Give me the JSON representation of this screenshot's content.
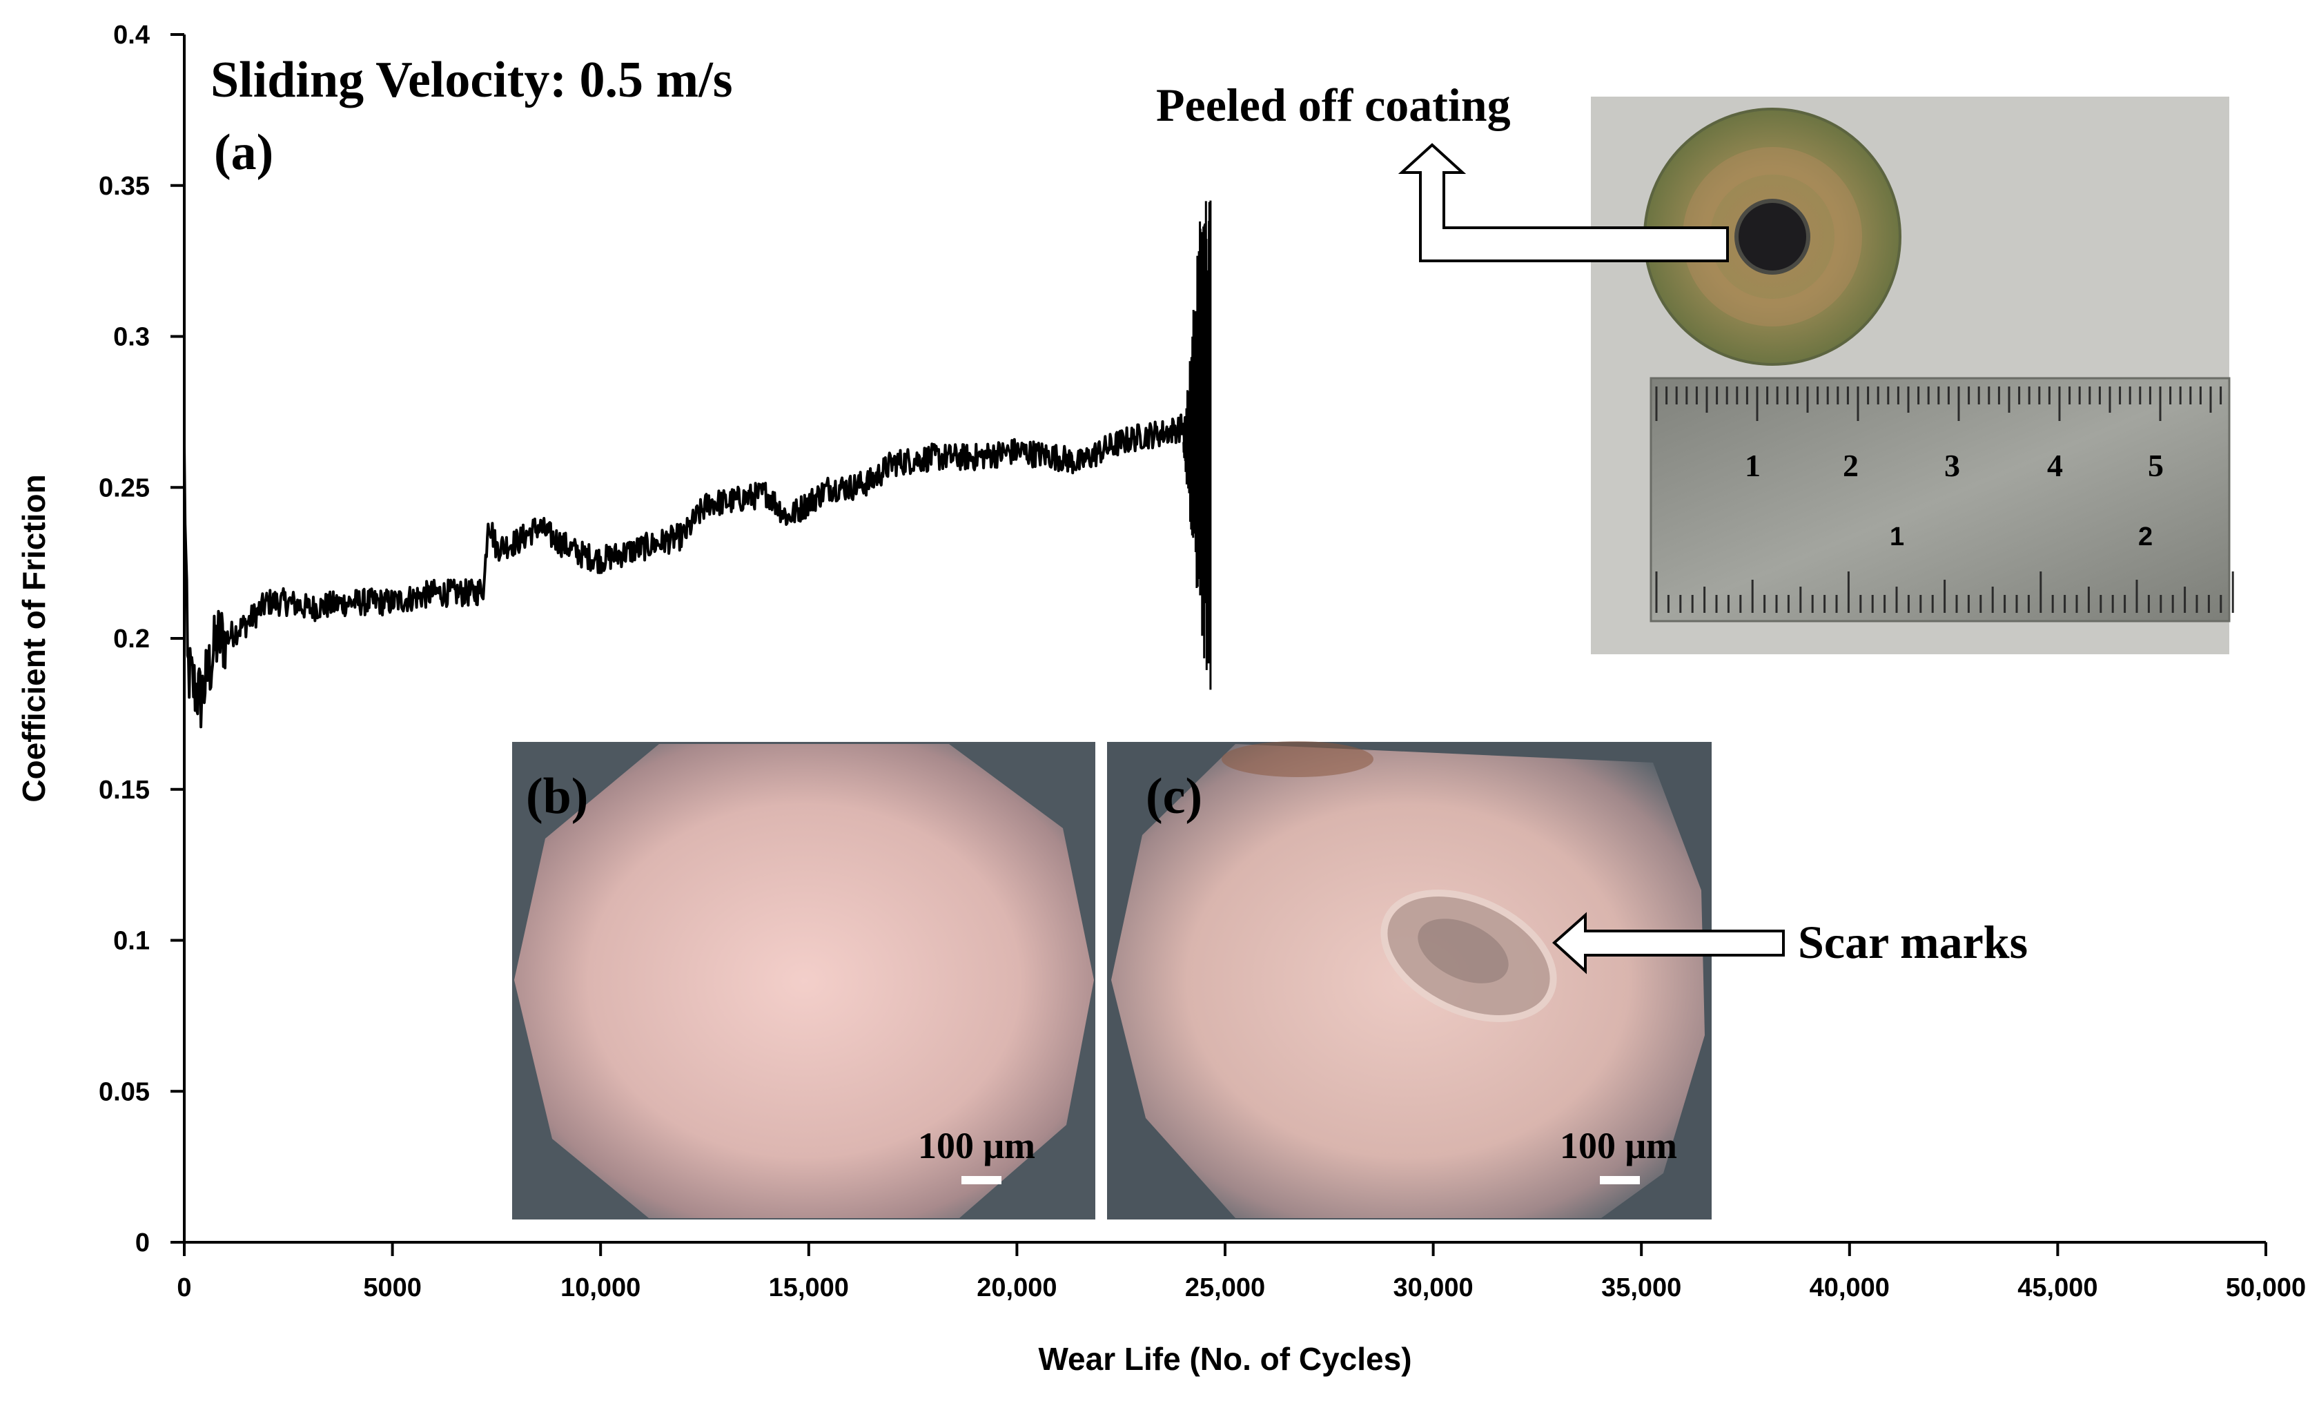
{
  "chart_data": {
    "type": "line",
    "title": "Sliding Velocity: 0.5 m/s",
    "panel_label": "(a)",
    "xlabel": "Wear Life (No. of Cycles)",
    "ylabel": "Coefficient of Friction",
    "xlim": [
      0,
      50000
    ],
    "ylim": [
      0,
      0.4
    ],
    "x_ticks": [
      {
        "value": 0,
        "label": "0"
      },
      {
        "value": 5000,
        "label": "5000"
      },
      {
        "value": 10000,
        "label": "10,000"
      },
      {
        "value": 15000,
        "label": "15,000"
      },
      {
        "value": 20000,
        "label": "20,000"
      },
      {
        "value": 25000,
        "label": "25,000"
      },
      {
        "value": 30000,
        "label": "30,000"
      },
      {
        "value": 35000,
        "label": "35,000"
      },
      {
        "value": 40000,
        "label": "40,000"
      },
      {
        "value": 45000,
        "label": "45,000"
      },
      {
        "value": 50000,
        "label": "50,000"
      }
    ],
    "y_ticks": [
      {
        "value": 0,
        "label": "0"
      },
      {
        "value": 0.05,
        "label": "0.05"
      },
      {
        "value": 0.1,
        "label": "0.1"
      },
      {
        "value": 0.15,
        "label": "0.15"
      },
      {
        "value": 0.2,
        "label": "0.2"
      },
      {
        "value": 0.25,
        "label": "0.25"
      },
      {
        "value": 0.3,
        "label": "0.3"
      },
      {
        "value": 0.35,
        "label": "0.35"
      },
      {
        "value": 0.4,
        "label": "0.4"
      }
    ],
    "series": [
      {
        "name": "COF",
        "color": "#000000",
        "x": [
          0,
          80,
          200,
          400,
          600,
          800,
          1000,
          1500,
          2000,
          2500,
          3000,
          4000,
          5000,
          6000,
          7000,
          7200,
          7300,
          7500,
          8000,
          8500,
          9000,
          9500,
          10000,
          10500,
          11000,
          11500,
          12000,
          12300,
          12600,
          13000,
          14000,
          14500,
          15000,
          15500,
          16000,
          16500,
          17000,
          18000,
          19000,
          20000,
          21000,
          21500,
          22000,
          22500,
          23000,
          23500,
          24000,
          24300,
          24600
        ],
        "y": [
          0.26,
          0.19,
          0.185,
          0.18,
          0.19,
          0.2,
          0.2,
          0.205,
          0.212,
          0.212,
          0.21,
          0.212,
          0.212,
          0.215,
          0.215,
          0.217,
          0.24,
          0.23,
          0.232,
          0.237,
          0.232,
          0.228,
          0.226,
          0.228,
          0.23,
          0.232,
          0.234,
          0.24,
          0.245,
          0.245,
          0.248,
          0.24,
          0.245,
          0.25,
          0.25,
          0.252,
          0.258,
          0.26,
          0.26,
          0.262,
          0.26,
          0.258,
          0.262,
          0.265,
          0.267,
          0.268,
          0.27,
          0.265,
          0.26
        ]
      }
    ],
    "failure_oscillation": {
      "x_start": 24000,
      "x_end": 24650,
      "y_min": 0.183,
      "y_max": 0.345
    },
    "annotations": {
      "peeled_label": "Peeled off coating",
      "scar_label": "Scar marks",
      "inset_b_label": "(b)",
      "inset_c_label": "(c)",
      "scale_bar_b": "100 μm",
      "scale_bar_c": "100 μm",
      "ruler_cm_marks": [
        "1",
        "2",
        "3",
        "4",
        "5"
      ],
      "ruler_inch_marks": [
        "1",
        "2"
      ]
    },
    "colors": {
      "photo_background": "#c4c4c1",
      "disc_ring": "#7d8251",
      "disc_inner": "#9a7f52",
      "disc_hole": "#1d1c1f",
      "ruler": "#8f918b",
      "micro_center": "#f1cdc8",
      "micro_edge": "#5f6a72"
    }
  }
}
